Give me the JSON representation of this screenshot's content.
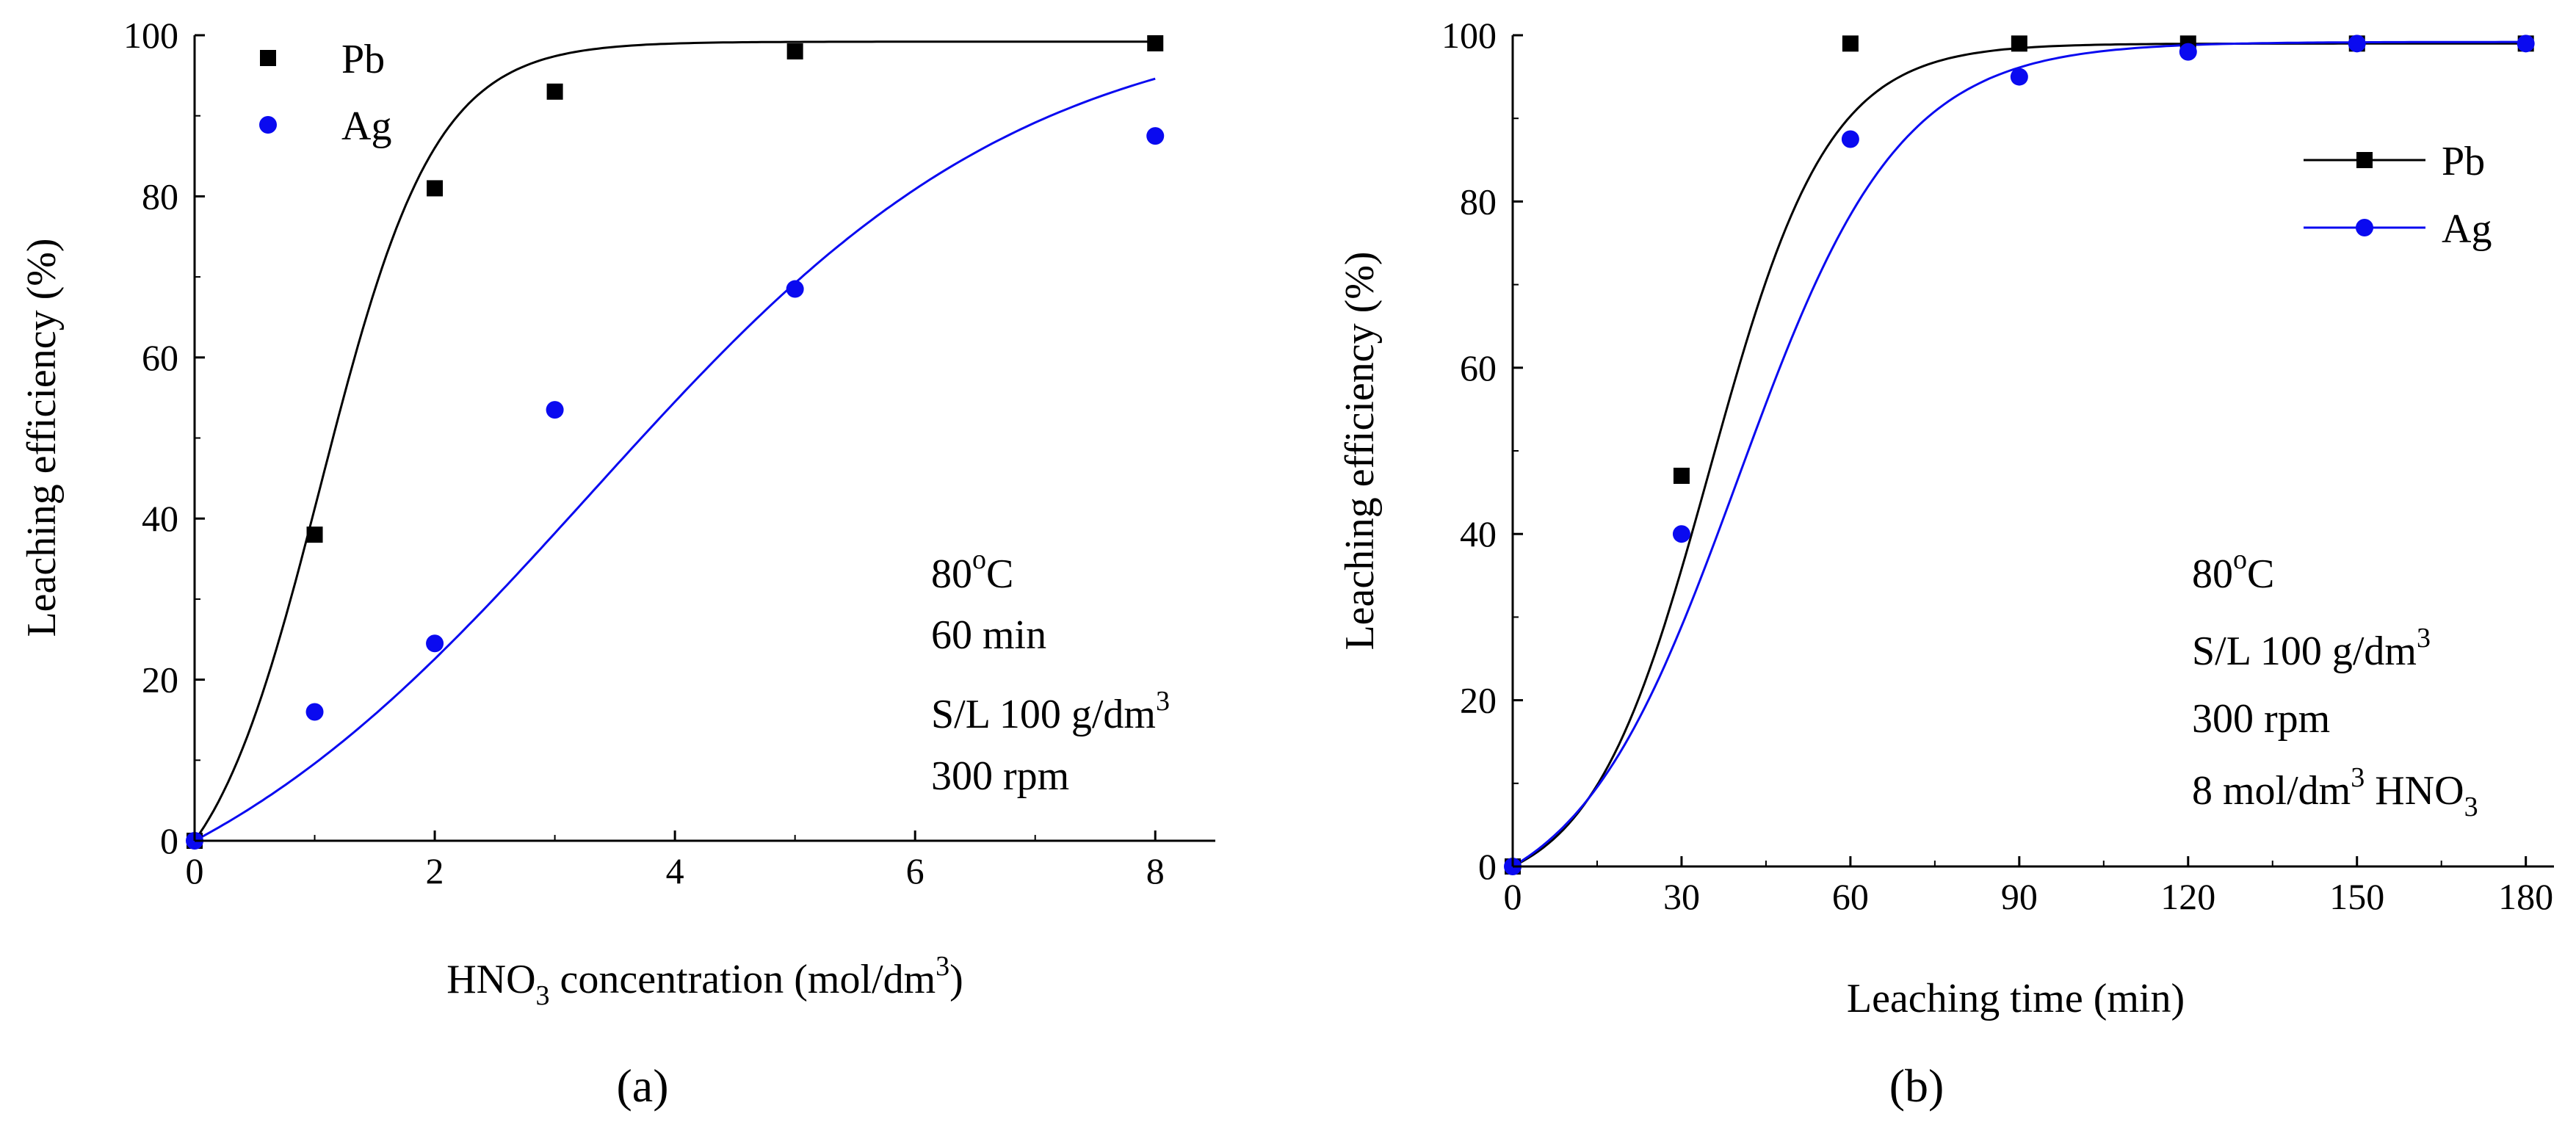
{
  "chart_data": [
    {
      "type": "scatter",
      "title": "",
      "xlabel": {
        "pre": "HNO",
        "sub": "3",
        "post": " concentration (mol/dm",
        "sup": "3",
        "end": ")"
      },
      "ylabel": "Leaching efficiency (%)",
      "xlim": [
        0,
        8.5
      ],
      "ylim": [
        0,
        100
      ],
      "xticks": [
        0,
        2,
        4,
        6,
        8
      ],
      "yticks": [
        0,
        20,
        40,
        60,
        80,
        100
      ],
      "legend_position": "top-left",
      "legend_style": "markers-only",
      "panel_label": "(a)",
      "series": [
        {
          "name": "Pb",
          "marker": "square",
          "color": "#000000",
          "x": [
            0,
            1,
            2,
            3,
            5,
            8
          ],
          "values": [
            0,
            38,
            81,
            93,
            98,
            99
          ],
          "fit": "sigmoid",
          "fit_params": {
            "a": 99.2,
            "x0": 1.05,
            "k": 2.1
          }
        },
        {
          "name": "Ag",
          "marker": "circle",
          "color": "#0a0af0",
          "x": [
            0,
            1,
            2,
            3,
            5,
            8
          ],
          "values": [
            0,
            16,
            24.5,
            53.5,
            68.5,
            87.5
          ],
          "fit": "sigmoid",
          "fit_params": {
            "a": 103,
            "x0": 3.3,
            "k": 0.55
          }
        }
      ],
      "annotations": {
        "line1": {
          "text": "80",
          "sup": "o",
          "after": "C"
        },
        "line2": {
          "text": "60 min"
        },
        "line3": {
          "text": "S/L 100 g/dm",
          "sup": "3"
        },
        "line4": {
          "text": "300 rpm"
        }
      }
    },
    {
      "type": "line",
      "title": "",
      "xlabel": {
        "pre": "Leaching time (min)"
      },
      "ylabel": "Leaching efficiency (%)",
      "xlim": [
        0,
        185
      ],
      "ylim": [
        0,
        100
      ],
      "xticks": [
        0,
        30,
        60,
        90,
        120,
        150,
        180
      ],
      "yticks": [
        0,
        20,
        40,
        60,
        80,
        100
      ],
      "legend_position": "top-right",
      "legend_style": "line-and-marker",
      "panel_label": "(b)",
      "series": [
        {
          "name": "Pb",
          "marker": "square",
          "color": "#000000",
          "x": [
            0,
            30,
            60,
            90,
            120,
            150,
            180
          ],
          "values": [
            0,
            47,
            99,
            99,
            99,
            99,
            99
          ],
          "fit": "sigmoid",
          "fit_params": {
            "a": 99,
            "x0": 35,
            "k": 0.095
          }
        },
        {
          "name": "Ag",
          "marker": "circle",
          "color": "#0a0af0",
          "x": [
            0,
            30,
            60,
            90,
            120,
            150,
            180
          ],
          "values": [
            0,
            40,
            87.5,
            95,
            98,
            99,
            99
          ],
          "fit": "sigmoid",
          "fit_params": {
            "a": 99.2,
            "x0": 40,
            "k": 0.07
          }
        }
      ],
      "annotations": {
        "line1": {
          "text": "80",
          "sup": "o",
          "after": "C"
        },
        "line2": {
          "text": "S/L 100 g/dm",
          "sup": "3"
        },
        "line3": {
          "text": "300 rpm"
        },
        "line4": {
          "text": "8 mol/dm",
          "sup": "3",
          "after": " HNO",
          "sub": "3"
        }
      }
    }
  ]
}
